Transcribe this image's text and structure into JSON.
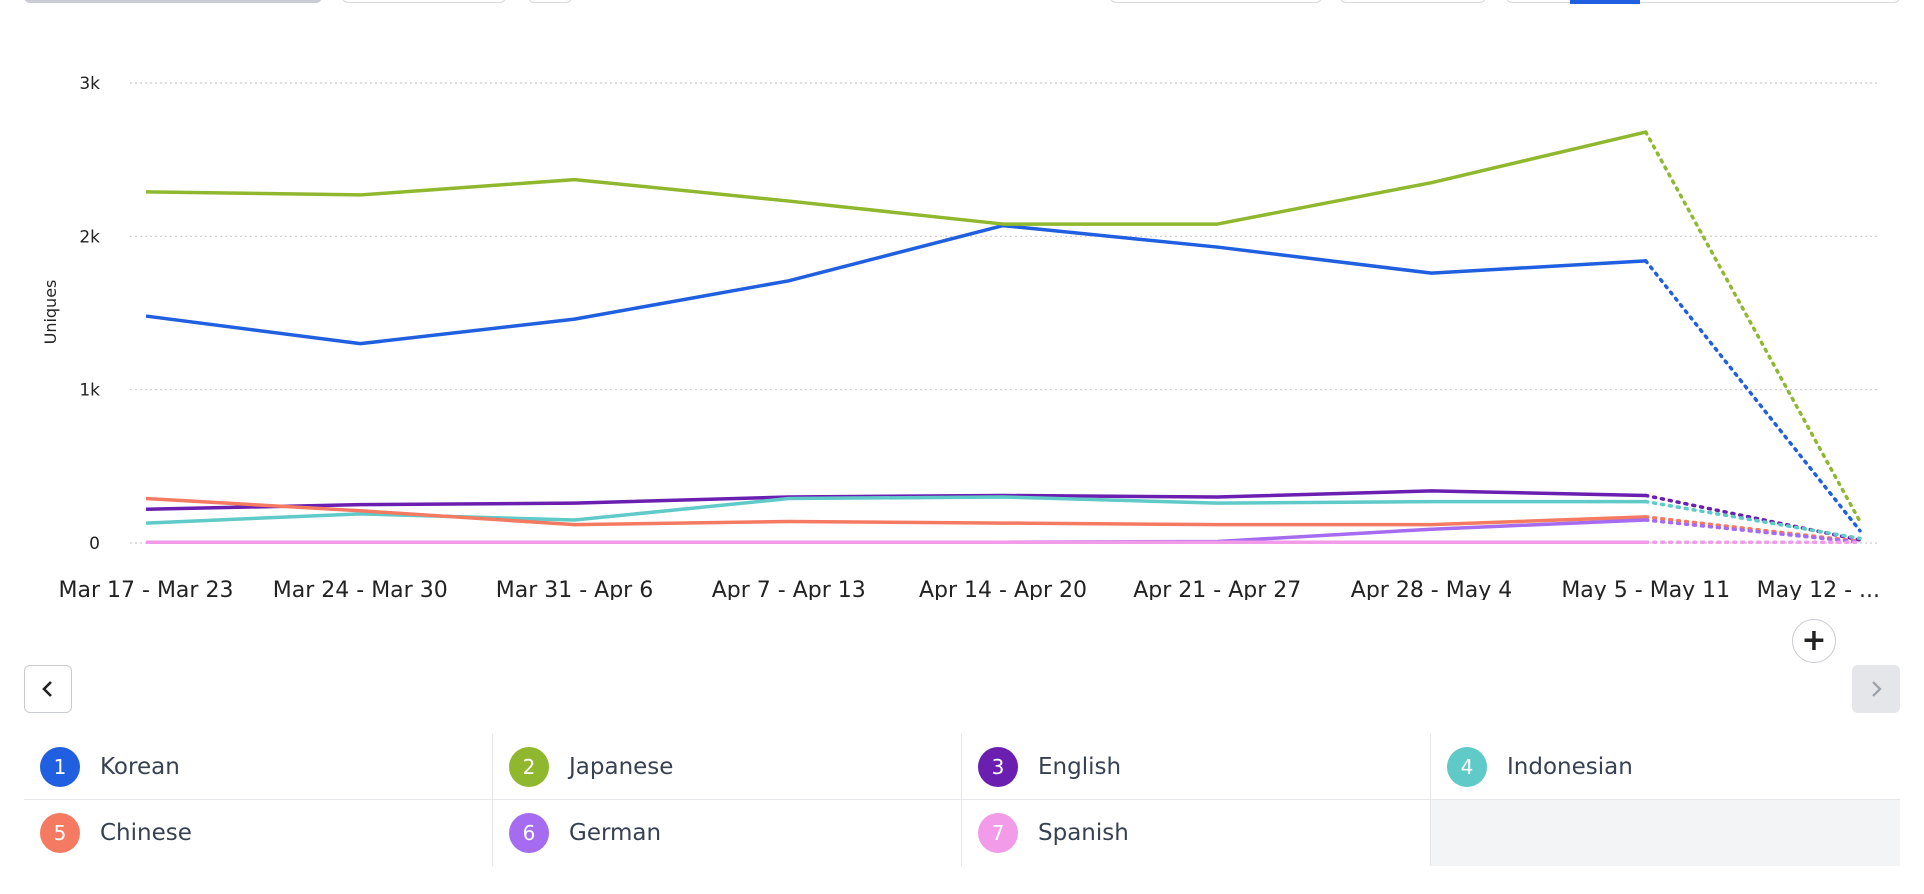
{
  "chart_data": {
    "type": "line",
    "ylabel": "Uniques",
    "xlabel": "",
    "ylim": [
      0,
      3000
    ],
    "y_ticks": [
      "0",
      "1k",
      "2k",
      "3k"
    ],
    "categories": [
      "Mar 17 - Mar 23",
      "Mar 24 - Mar 30",
      "Mar 31 - Apr 6",
      "Apr 7 - Apr 13",
      "Apr 14 - Apr 20",
      "Apr 21 - Apr 27",
      "Apr 28 - May 4",
      "May 5 - May 11",
      "May 12 - ..."
    ],
    "incomplete_period": "May 12 - ...",
    "grid": true,
    "series": [
      {
        "name": "Korean",
        "color": "#1f5fe0",
        "values": [
          1480,
          1300,
          1460,
          1710,
          2070,
          1930,
          1760,
          1840,
          80
        ]
      },
      {
        "name": "Japanese",
        "color": "#8fb82f",
        "values": [
          2290,
          2270,
          2370,
          2230,
          2080,
          2080,
          2350,
          2680,
          140
        ]
      },
      {
        "name": "English",
        "color": "#6a1fb0",
        "values": [
          220,
          250,
          260,
          300,
          310,
          300,
          340,
          310,
          20
        ]
      },
      {
        "name": "Indonesian",
        "color": "#5fcac8",
        "values": [
          130,
          190,
          150,
          290,
          300,
          260,
          270,
          270,
          30
        ]
      },
      {
        "name": "Chinese",
        "color": "#f47a62",
        "values": [
          290,
          210,
          120,
          140,
          130,
          120,
          120,
          170,
          10
        ]
      },
      {
        "name": "German",
        "color": "#a56bf0",
        "values": [
          5,
          5,
          5,
          5,
          5,
          10,
          90,
          150,
          5
        ]
      },
      {
        "name": "Spanish",
        "color": "#f29be8",
        "values": [
          5,
          5,
          5,
          5,
          5,
          5,
          5,
          5,
          5
        ]
      }
    ]
  },
  "legend": {
    "items": [
      {
        "index": "1",
        "label": "Korean",
        "color": "#1f5fe0"
      },
      {
        "index": "2",
        "label": "Japanese",
        "color": "#8fb82f"
      },
      {
        "index": "3",
        "label": "English",
        "color": "#6a1fb0"
      },
      {
        "index": "4",
        "label": "Indonesian",
        "color": "#5fcac8"
      },
      {
        "index": "5",
        "label": "Chinese",
        "color": "#f47a62"
      },
      {
        "index": "6",
        "label": "German",
        "color": "#a56bf0"
      },
      {
        "index": "7",
        "label": "Spanish",
        "color": "#f29be8"
      }
    ]
  },
  "controls": {
    "add_label": "+",
    "prev_icon": "chevron-left-icon",
    "next_icon": "chevron-right-icon"
  }
}
